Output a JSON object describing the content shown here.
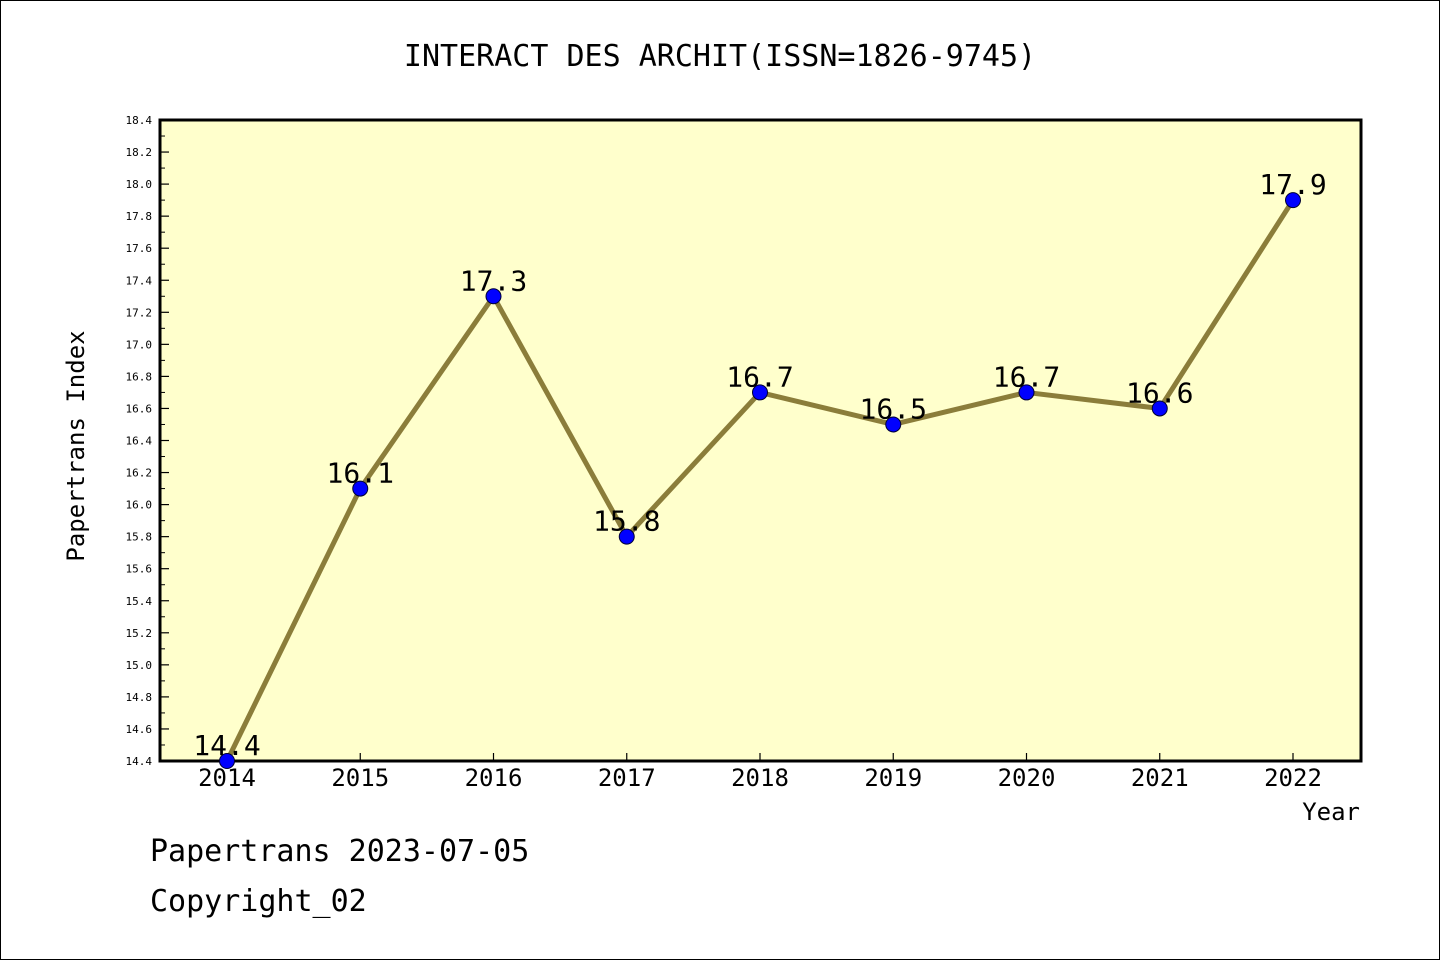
{
  "chart_data": {
    "type": "line",
    "title": "INTERACT DES ARCHIT(ISSN=1826-9745)",
    "xlabel": "Year",
    "ylabel": "Papertrans Index",
    "x": [
      "2014",
      "2015",
      "2016",
      "2017",
      "2018",
      "2019",
      "2020",
      "2021",
      "2022"
    ],
    "series": [
      {
        "values": [
          14.4,
          16.1,
          17.3,
          15.8,
          16.7,
          16.5,
          16.7,
          16.6,
          17.9
        ],
        "labels": [
          "14.4",
          "16.1",
          "17.3",
          "15.8",
          "16.7",
          "16.5",
          "16.7",
          "16.6",
          "17.9"
        ]
      }
    ],
    "yticks": [
      "14.4",
      "14.6",
      "14.8",
      "15.0",
      "15.2",
      "15.4",
      "15.6",
      "15.8",
      "16.0",
      "16.2",
      "16.4",
      "16.6",
      "16.8",
      "17.0",
      "17.2",
      "17.4",
      "17.6",
      "17.8",
      "18.0",
      "18.2",
      "18.4"
    ],
    "ylim": [
      14.4,
      18.4
    ],
    "grid": false,
    "colors": {
      "plot_background": "#ffffcc",
      "line": "#8b7d3a",
      "marker": "#0000ff"
    }
  },
  "footer": {
    "line1": "Papertrans 2023-07-05",
    "line2": "Copyright_02"
  }
}
